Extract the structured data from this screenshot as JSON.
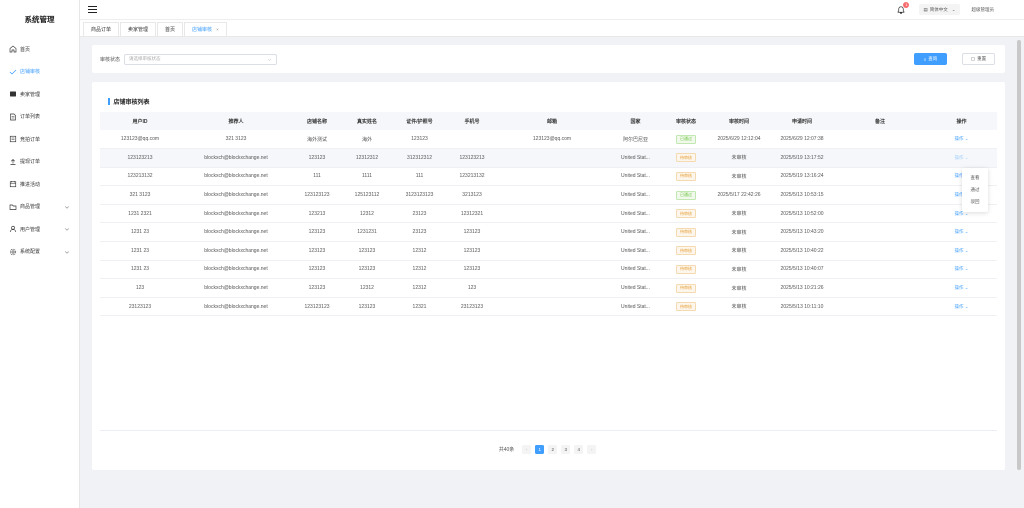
{
  "app": {
    "title": "系统管理"
  },
  "sidebar": {
    "items": [
      {
        "label": "首页",
        "icon": "home-icon"
      },
      {
        "label": "店铺审核",
        "icon": "check-icon",
        "active": true
      },
      {
        "label": "卖家管理",
        "icon": "card-icon"
      },
      {
        "label": "订单列表",
        "icon": "document-icon"
      },
      {
        "label": "竞拍订单",
        "icon": "receipt-icon"
      },
      {
        "label": "提现订单",
        "icon": "upload-icon"
      },
      {
        "label": "推进活动",
        "icon": "calendar-icon"
      },
      {
        "label": "商品管理",
        "icon": "folder-icon",
        "expandable": true
      },
      {
        "label": "用户管理",
        "icon": "user-icon",
        "expandable": true
      },
      {
        "label": "系统配置",
        "icon": "gear-icon",
        "expandable": true
      }
    ]
  },
  "topbar": {
    "notifications": "1",
    "language": "简体中文",
    "user": "超级管理员"
  },
  "tabs": [
    {
      "label": "商品订单"
    },
    {
      "label": "卖家管理"
    },
    {
      "label": "首页"
    },
    {
      "label": "店铺审核",
      "active": true,
      "close": "×"
    }
  ],
  "filter": {
    "label": "审核状态",
    "placeholder": "请选择审核状态",
    "query_label": "查询",
    "reset_label": "重置"
  },
  "list": {
    "title": "店铺审核列表",
    "columns": [
      "用户ID",
      "推荐人",
      "店铺名称",
      "真实姓名",
      "证件/护照号",
      "手机号",
      "邮箱",
      "国家",
      "审核状态",
      "审核时间",
      "申请时间",
      "备注",
      "操作"
    ],
    "rows": [
      [
        "123123@qq.com",
        "321 3123",
        "海外测试",
        "海外",
        "123123",
        "",
        "123123@qq.com",
        "阿尔巴尼亚",
        "已通过",
        "2025/6/29 12:12:04",
        "2025/6/29 12:07:38",
        "",
        "操作"
      ],
      [
        "123123213",
        "blockxch@blockxchange.net",
        "123123",
        "12312312",
        "312312312",
        "123123213",
        "",
        "United Stat...",
        "待审核",
        "未审核",
        "2025/5/19 13:17:52",
        "",
        "操作"
      ],
      [
        "123213132",
        "blockxch@blockxchange.net",
        "111",
        "1111",
        "111",
        "123213132",
        "",
        "United Stat...",
        "待审核",
        "未审核",
        "2025/5/19 13:16:24",
        "",
        "操作"
      ],
      [
        "321 3123",
        "blockxch@blockxchange.net",
        "123123123",
        "125123112",
        "3123123123",
        "3213123",
        "",
        "United Stat...",
        "已通过",
        "2025/5/17 22:42:26",
        "2025/5/13 10:53:15",
        "",
        "操作"
      ],
      [
        "1231 2321",
        "blockxch@blockxchange.net",
        "123213",
        "12312",
        "23123",
        "12312321",
        "",
        "United Stat...",
        "待审核",
        "未审核",
        "2025/5/13 10:52:00",
        "",
        "操作"
      ],
      [
        "1231 23",
        "blockxch@blockxchange.net",
        "123123",
        "1231231",
        "23123",
        "123123",
        "",
        "United Stat...",
        "待审核",
        "未审核",
        "2025/5/13 10:43:20",
        "",
        "操作"
      ],
      [
        "1231 23",
        "blockxch@blockxchange.net",
        "123123",
        "123123",
        "12312",
        "123123",
        "",
        "United Stat...",
        "待审核",
        "未审核",
        "2025/5/13 10:40:22",
        "",
        "操作"
      ],
      [
        "1231 23",
        "blockxch@blockxchange.net",
        "123123",
        "123123",
        "12312",
        "123123",
        "",
        "United Stat...",
        "待审核",
        "未审核",
        "2025/5/13 10:40:07",
        "",
        "操作"
      ],
      [
        "123",
        "blockxch@blockxchange.net",
        "123123",
        "12312",
        "12312",
        "123",
        "",
        "United Stat...",
        "待审核",
        "未审核",
        "2025/5/13 10:21:26",
        "",
        "操作"
      ],
      [
        "23123123",
        "blockxch@blockxchange.net",
        "123123123",
        "123123",
        "12321",
        "23123123",
        "",
        "United Stat...",
        "待审核",
        "未审核",
        "2025/5/13 10:11:10",
        "",
        "操作"
      ]
    ],
    "highlight_row": 1
  },
  "dropdown": {
    "items": [
      "查看",
      "通过",
      "驳回"
    ]
  },
  "pagination": {
    "total": "共40条",
    "pages": [
      "1",
      "2",
      "3",
      "4"
    ],
    "current": "1",
    "prev": "‹",
    "next": "›"
  },
  "colors": {
    "accent": "#409eff",
    "pass": "#67c23a",
    "pending": "#e6a23c"
  }
}
